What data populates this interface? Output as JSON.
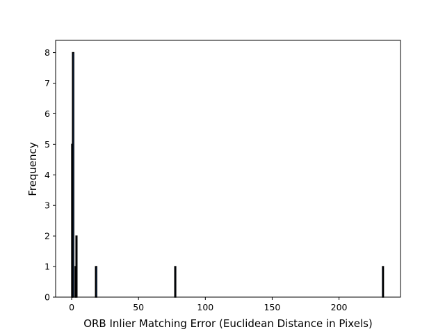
{
  "chart_data": {
    "type": "bar",
    "title": "",
    "xlabel": "ORB Inlier Matching Error (Euclidean Distance in Pixels)",
    "ylabel": "Frequency",
    "xlim": [
      -12,
      246
    ],
    "ylim": [
      0,
      8.4
    ],
    "xticks": [
      0,
      50,
      100,
      150,
      200
    ],
    "yticks": [
      0,
      1,
      2,
      3,
      4,
      5,
      6,
      7,
      8
    ],
    "grid": false,
    "bar_color": "#1f4e8c",
    "edge_color": "#000000",
    "bins": [
      {
        "x0": 0.0,
        "x1": 0.6,
        "count": 5
      },
      {
        "x0": 0.6,
        "x1": 1.6,
        "count": 8
      },
      {
        "x0": 2.6,
        "x1": 3.2,
        "count": 1
      },
      {
        "x0": 3.2,
        "x1": 4.0,
        "count": 2
      },
      {
        "x0": 17.8,
        "x1": 18.8,
        "count": 1
      },
      {
        "x0": 77.1,
        "x1": 77.9,
        "count": 1
      },
      {
        "x0": 232.5,
        "x1": 233.3,
        "count": 1
      }
    ]
  }
}
